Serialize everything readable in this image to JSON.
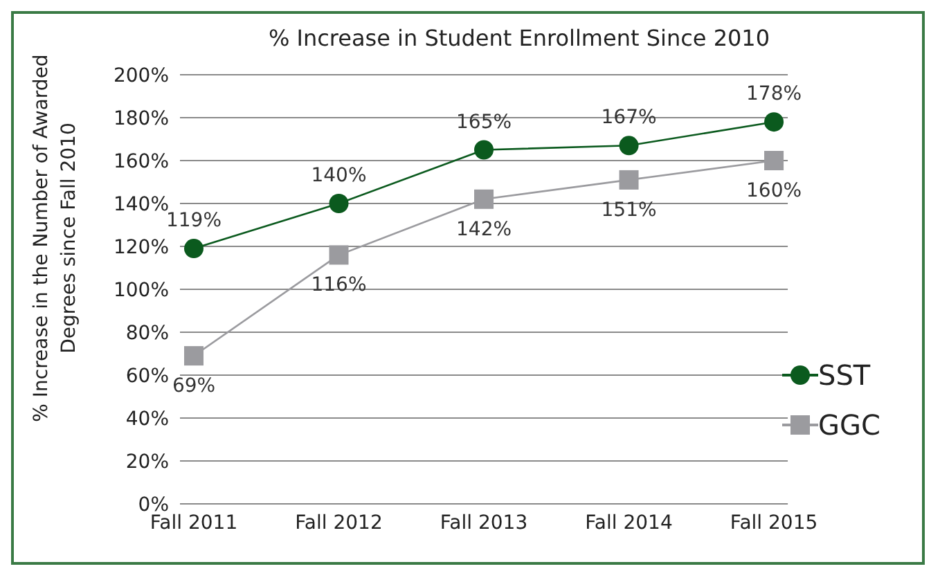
{
  "chart_data": {
    "type": "line",
    "title": "% Increase in Student Enrollment Since 2010",
    "ylabel": "% Increase in the Number of Awarded Degrees since Fall 2010",
    "categories": [
      "Fall 2011",
      "Fall 2012",
      "Fall 2013",
      "Fall 2014",
      "Fall 2015"
    ],
    "series": [
      {
        "name": "SST",
        "color": "#0b5a1e",
        "marker": "circle",
        "values": [
          119,
          140,
          165,
          167,
          178
        ],
        "value_labels": [
          "119%",
          "140%",
          "165%",
          "167%",
          "178%"
        ]
      },
      {
        "name": "GGC",
        "color": "#9b9b9f",
        "marker": "square",
        "values": [
          69,
          116,
          142,
          151,
          160
        ],
        "value_labels": [
          "69%",
          "116%",
          "142%",
          "151%",
          "160%"
        ]
      }
    ],
    "ylim": [
      0,
      200
    ],
    "yticks": [
      {
        "value": 0,
        "label": "0%"
      },
      {
        "value": 20,
        "label": "20%"
      },
      {
        "value": 40,
        "label": "40%"
      },
      {
        "value": 60,
        "label": "60%"
      },
      {
        "value": 80,
        "label": "80%"
      },
      {
        "value": 100,
        "label": "100%"
      },
      {
        "value": 120,
        "label": "120%"
      },
      {
        "value": 140,
        "label": "140%"
      },
      {
        "value": 160,
        "label": "160%"
      },
      {
        "value": 180,
        "label": "180%"
      },
      {
        "value": 200,
        "label": "200%"
      }
    ],
    "grid": "y",
    "legend": "right"
  }
}
